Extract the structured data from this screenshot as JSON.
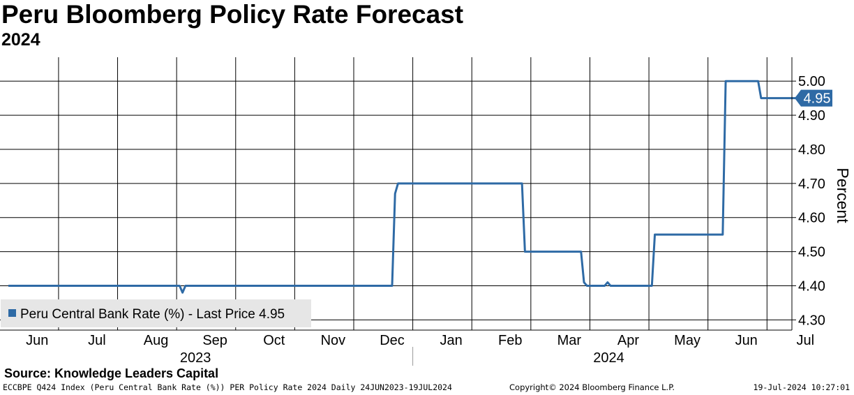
{
  "header": {
    "title": "Peru Bloomberg Policy Rate Forecast",
    "subtitle": "2024"
  },
  "chart_data": {
    "type": "line",
    "title": "Peru Bloomberg Policy Rate Forecast",
    "subtitle": "2024",
    "ylabel": "Percent",
    "xlabel": "",
    "ylim": [
      4.27,
      5.07
    ],
    "y_ticks": [
      "4.30",
      "4.40",
      "4.50",
      "4.60",
      "4.70",
      "4.80",
      "4.90",
      "5.00"
    ],
    "y_tick_values": [
      4.3,
      4.4,
      4.5,
      4.6,
      4.7,
      4.8,
      4.9,
      5.0
    ],
    "month_labels": [
      "Jun",
      "Jul",
      "Aug",
      "Sep",
      "Oct",
      "Nov",
      "Dec",
      "Jan",
      "Feb",
      "Mar",
      "Apr",
      "May",
      "Jun",
      "Jul"
    ],
    "month_label_pos": [
      0.5,
      1.5,
      2.5,
      3.5,
      4.5,
      5.5,
      6.5,
      7.5,
      8.5,
      9.5,
      10.5,
      11.5,
      12.5,
      13.5
    ],
    "year_labels": [
      "2023",
      "2024"
    ],
    "year_label_pos": [
      3.5,
      10.5
    ],
    "grid": true,
    "legend": {
      "position": "bottom-left",
      "label": "Peru Central Bank Rate (%) - Last Price 4.95"
    },
    "last_value_label": "4.95",
    "series": [
      {
        "name": "Peru Central Bank Rate (%)",
        "color": "#2e6aa5",
        "x": [
          0,
          2.9,
          2.95,
          3.0,
          6.5,
          6.55,
          6.6,
          8.7,
          8.75,
          9.7,
          9.75,
          9.8,
          10.1,
          10.15,
          10.2,
          10.9,
          10.95,
          12.1,
          12.15,
          12.7,
          12.75,
          13.3,
          13.35,
          13.6
        ],
        "y": [
          4.4,
          4.4,
          4.38,
          4.4,
          4.4,
          4.67,
          4.7,
          4.7,
          4.5,
          4.5,
          4.41,
          4.4,
          4.4,
          4.41,
          4.4,
          4.4,
          4.55,
          4.55,
          5.0,
          5.0,
          4.95,
          4.95,
          4.95,
          4.95
        ]
      }
    ]
  },
  "footer": {
    "source": "Source: Knowledge Leaders Capital",
    "left": "ECCBPE Q424 Index (Peru Central Bank Rate (%)) PER Policy Rate 2024  Daily 24JUN2023-19JUL2024",
    "copyright": "Copyright© 2024 Bloomberg Finance L.P.",
    "timestamp": "19-Jul-2024 10:27:01"
  },
  "colors": {
    "series": "#2e6aa5",
    "grid": "#000000",
    "legend_bg": "#e6e6e6",
    "background": "#ffffff"
  }
}
